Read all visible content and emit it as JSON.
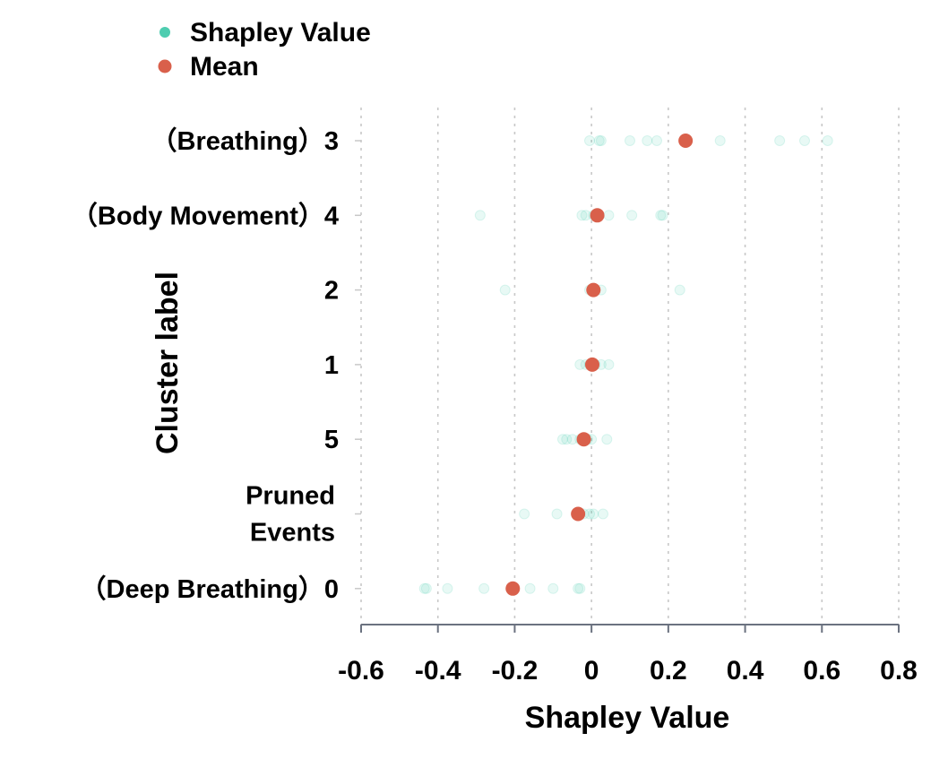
{
  "chart_data": {
    "type": "scatter",
    "xlabel": "Shapley Value",
    "ylabel": "Cluster label",
    "xlim": [
      -0.6,
      0.8
    ],
    "xticks": [
      -0.6,
      -0.4,
      -0.2,
      0,
      0.2,
      0.4,
      0.6,
      0.8
    ],
    "xtick_labels": [
      "-0.6",
      "-0.4",
      "-0.2",
      "0",
      "0.2",
      "0.4",
      "0.6",
      "0.8"
    ],
    "grid": "vertical-dotted",
    "legend": {
      "placement": "top-left",
      "entries": [
        {
          "label": "Shapley Value",
          "color": "#4ecdb0"
        },
        {
          "label": "Mean",
          "color": "#d9604b"
        }
      ]
    },
    "categories": [
      {
        "label_lines": [
          "（Breathing）3"
        ],
        "points": [
          -0.005,
          0.02,
          0.025,
          0.1,
          0.145,
          0.17,
          0.335,
          0.49,
          0.555,
          0.615
        ],
        "mean": 0.245
      },
      {
        "label_lines": [
          "（Body Movement）4"
        ],
        "points": [
          -0.29,
          -0.025,
          -0.015,
          0.005,
          0.01,
          0.045,
          0.105,
          0.18,
          0.185
        ],
        "mean": 0.015
      },
      {
        "label_lines": [
          "2"
        ],
        "points": [
          -0.225,
          -0.005,
          0.005,
          0.025,
          0.23
        ],
        "mean": 0.005
      },
      {
        "label_lines": [
          "1"
        ],
        "points": [
          -0.03,
          -0.015,
          -0.005,
          0.01,
          0.025,
          0.045
        ],
        "mean": 0.002
      },
      {
        "label_lines": [
          "5"
        ],
        "points": [
          -0.075,
          -0.065,
          -0.05,
          -0.03,
          -0.01,
          0.0,
          0.04
        ],
        "mean": -0.02
      },
      {
        "label_lines": [
          "Pruned",
          "Events"
        ],
        "points": [
          -0.175,
          -0.09,
          -0.02,
          -0.005,
          0.005,
          0.03
        ],
        "mean": -0.035
      },
      {
        "label_lines": [
          "（Deep Breathing）0"
        ],
        "points": [
          -0.435,
          -0.43,
          -0.375,
          -0.28,
          -0.21,
          -0.16,
          -0.1,
          -0.035,
          -0.03
        ],
        "mean": -0.205
      }
    ],
    "colors": {
      "points": "#4ecdb0",
      "mean": "#d9604b",
      "axis": "#6b7280",
      "grid": "#c8c8c8"
    }
  }
}
